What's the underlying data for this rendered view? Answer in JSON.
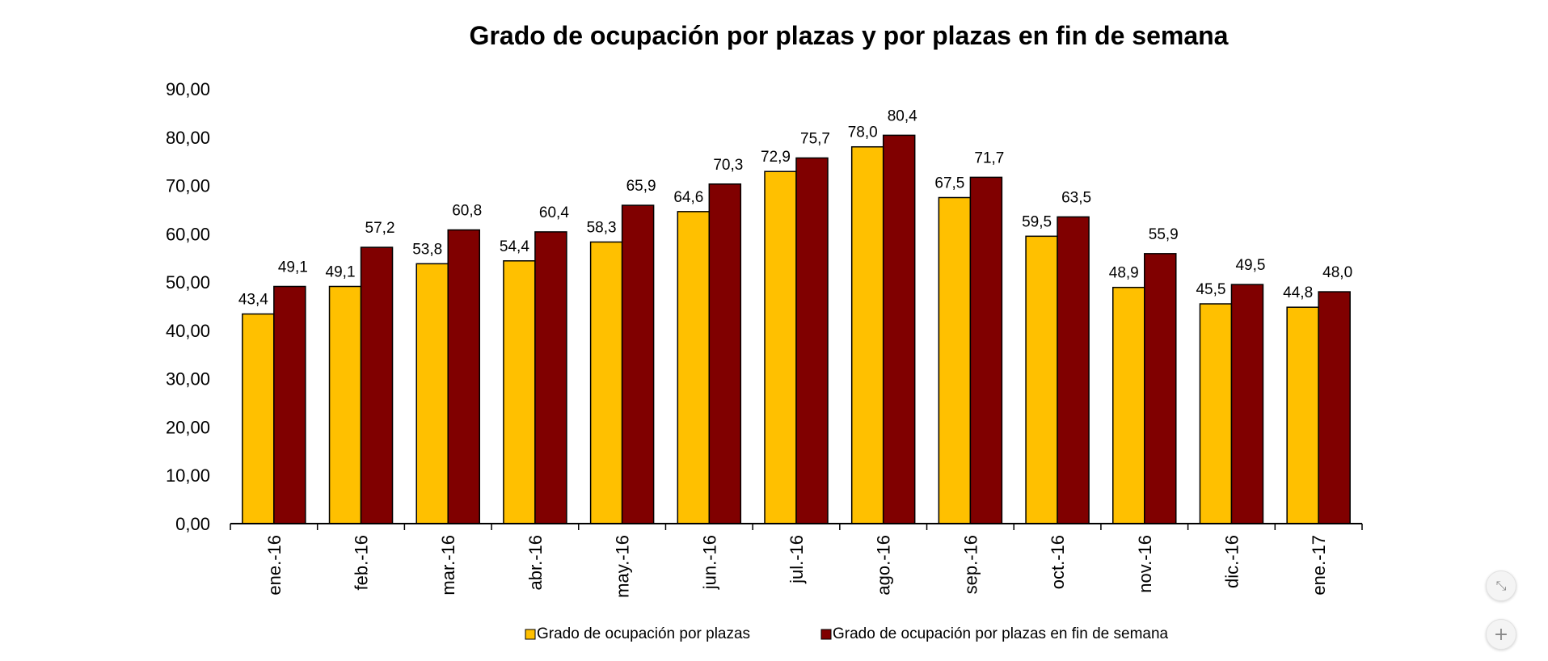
{
  "chart_data": {
    "type": "bar",
    "title": "Grado de ocupación por plazas y por plazas en fin de semana",
    "xlabel": "",
    "ylabel": "",
    "categories": [
      "ene.-16",
      "feb.-16",
      "mar.-16",
      "abr.-16",
      "may.-16",
      "jun.-16",
      "jul.-16",
      "ago.-16",
      "sep.-16",
      "oct.-16",
      "nov.-16",
      "dic.-16",
      "ene.-17"
    ],
    "series": [
      {
        "name": "Grado de ocupación por plazas",
        "color": "#FFC000",
        "values": [
          43.4,
          49.1,
          53.8,
          54.4,
          58.3,
          64.6,
          72.9,
          78.0,
          67.5,
          59.5,
          48.9,
          45.5,
          44.8
        ],
        "labels": [
          "43,4",
          "49,1",
          "53,8",
          "54,4",
          "58,3",
          "64,6",
          "72,9",
          "78,0",
          "67,5",
          "59,5",
          "48,9",
          "45,5",
          "44,8"
        ]
      },
      {
        "name": "Grado de ocupación por plazas en fin de semana",
        "color": "#800000",
        "values": [
          49.1,
          57.2,
          60.8,
          60.4,
          65.9,
          70.3,
          75.7,
          80.4,
          71.7,
          63.5,
          55.9,
          49.5,
          48.0
        ],
        "labels": [
          "49,1",
          "57,2",
          "60,8",
          "60,4",
          "65,9",
          "70,3",
          "75,7",
          "80,4",
          "71,7",
          "63,5",
          "55,9",
          "49,5",
          "48,0"
        ]
      }
    ],
    "ylim": [
      0,
      90
    ],
    "yticks": [
      "0,00",
      "10,00",
      "20,00",
      "30,00",
      "40,00",
      "50,00",
      "60,00",
      "70,00",
      "80,00",
      "90,00"
    ],
    "grid": false,
    "legend_position": "bottom"
  },
  "controls": {
    "collapse_icon": "collapse-icon",
    "zoom_icon": "plus-icon"
  }
}
